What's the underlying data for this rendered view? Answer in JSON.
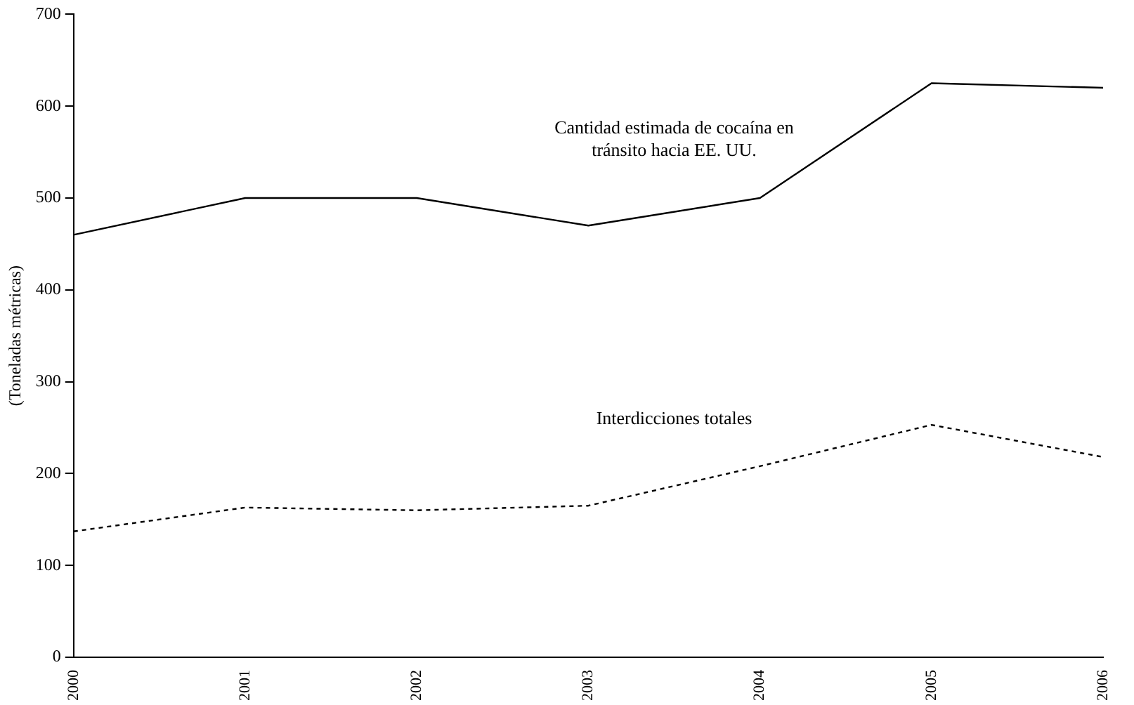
{
  "chart_data": {
    "type": "line",
    "ylabel": "(Toneladas métricas)",
    "categories": [
      "2000",
      "2001",
      "2002",
      "2003",
      "2004",
      "2005",
      "2006"
    ],
    "series": [
      {
        "name": "Cantidad estimada de cocaína en tránsito hacia EE. UU.",
        "color": "#000000",
        "line_style": "solid",
        "values": [
          460,
          500,
          500,
          470,
          500,
          625,
          620
        ]
      },
      {
        "name": "Interdicciones totales",
        "color": "#000000",
        "line_style": "dashed",
        "values": [
          137,
          163,
          160,
          165,
          208,
          253,
          218
        ]
      }
    ],
    "ylim": [
      0,
      700
    ],
    "yticks": [
      0,
      100,
      200,
      300,
      400,
      500,
      600,
      700
    ],
    "grid": false,
    "legend": false,
    "marker": "none"
  }
}
